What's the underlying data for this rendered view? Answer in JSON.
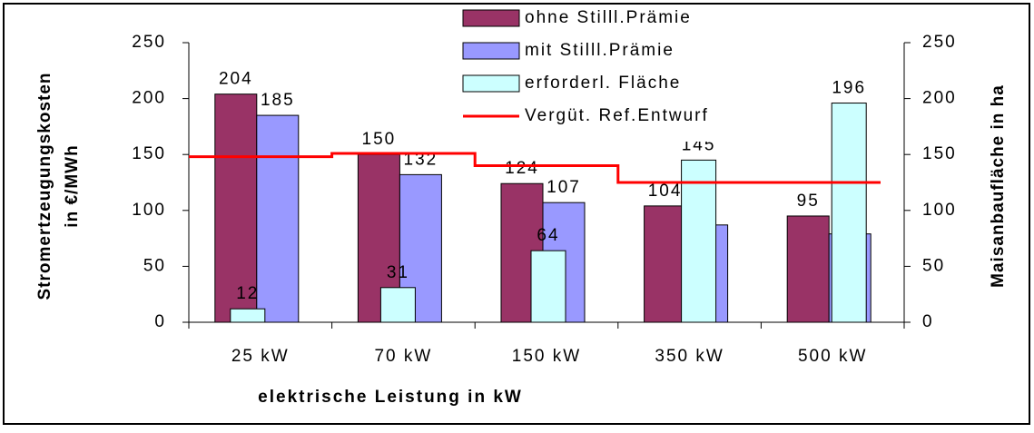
{
  "chart_data": {
    "type": "bar",
    "categories": [
      "25 kW",
      "70 kW",
      "150 kW",
      "350 kW",
      "500 kW"
    ],
    "series": [
      {
        "name": "ohne Stilll.Prämie",
        "color": "#993366",
        "values": [
          204,
          150,
          124,
          104,
          95
        ]
      },
      {
        "name": "mit Stilll.Prämie",
        "color": "#9999ff",
        "values": [
          185,
          132,
          107,
          87,
          79
        ]
      },
      {
        "name": "erforderl. Fläche",
        "color": "#ccffff",
        "axis": "y2",
        "values": [
          12,
          31,
          64,
          145,
          196
        ]
      },
      {
        "name": "Vergüt. Ref.Entwurf",
        "color": "#ff0000",
        "type": "step-line",
        "values": [
          148,
          151,
          140,
          125,
          125
        ]
      }
    ],
    "xlabel": "elektrische Leistung in kW",
    "ylabel": [
      "Stromertzeugungskosten",
      "in €/MWh"
    ],
    "y2label": "Maisanbaufläche in ha",
    "ylim": [
      0,
      250
    ],
    "yticks": [
      0,
      50,
      100,
      150,
      200,
      250
    ],
    "y2lim": [
      0,
      250
    ],
    "y2ticks": [
      0,
      50,
      100,
      150,
      200,
      250
    ],
    "legend": "top"
  }
}
